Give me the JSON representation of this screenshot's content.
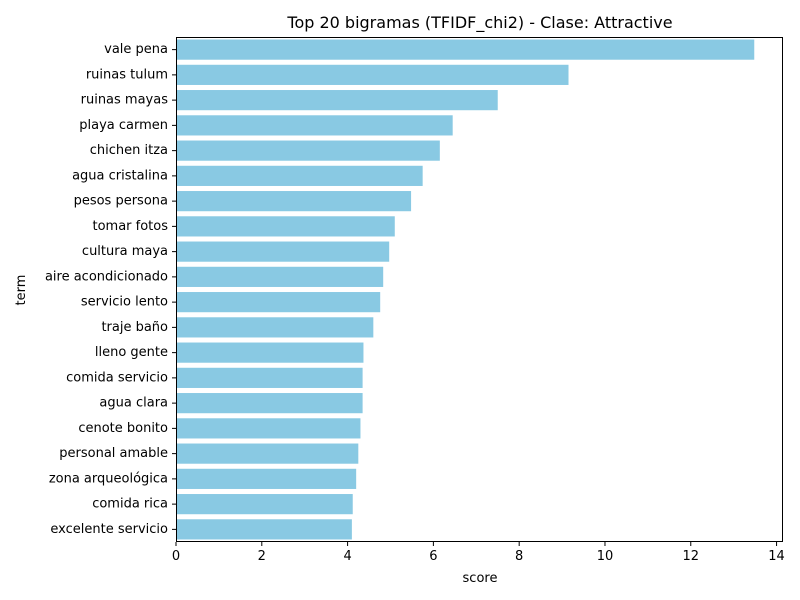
{
  "chart_data": {
    "type": "bar",
    "orientation": "horizontal",
    "title": "Top 20 bigramas (TFIDF_chi2) - Clase: Attractive",
    "xlabel": "score",
    "ylabel": "term",
    "xlim": [
      0,
      14.15
    ],
    "xticks": [
      0,
      2,
      4,
      6,
      8,
      10,
      12,
      14
    ],
    "grid": false,
    "bar_color": "#89c9e3",
    "categories": [
      "vale pena",
      "ruinas tulum",
      "ruinas mayas",
      "playa carmen",
      "chichen itza",
      "agua cristalina",
      "pesos persona",
      "tomar fotos",
      "cultura maya",
      "aire acondicionado",
      "servicio lento",
      "traje baño",
      "lleno gente",
      "comida servicio",
      "agua clara",
      "cenote bonito",
      "personal amable",
      "zona arqueológica",
      "comida rica",
      "excelente servicio"
    ],
    "values": [
      13.48,
      9.15,
      7.5,
      6.45,
      6.15,
      5.75,
      5.48,
      5.1,
      4.97,
      4.83,
      4.76,
      4.6,
      4.37,
      4.35,
      4.35,
      4.3,
      4.25,
      4.2,
      4.12,
      4.1
    ]
  }
}
